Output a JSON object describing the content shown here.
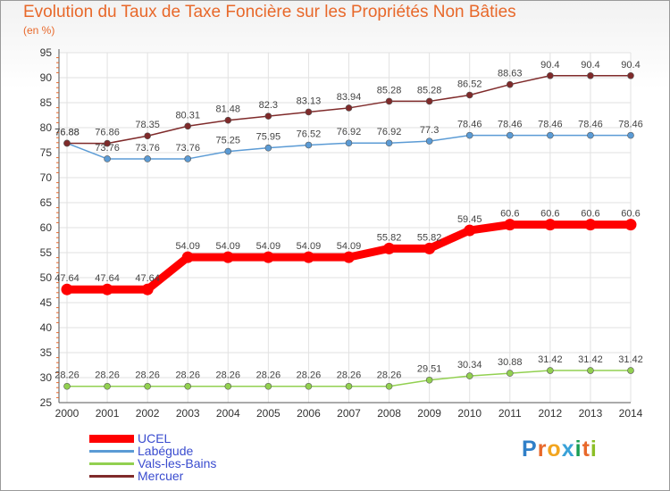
{
  "header": {
    "title": "Evolution du Taux de Taxe Foncière sur les Propriétés Non Bâties",
    "unit": "(en %)"
  },
  "brand": {
    "letters": [
      "P",
      "r",
      "o",
      "x",
      "i",
      "t",
      "i"
    ],
    "colors": [
      "#2f7fc8",
      "#e8682a",
      "#f2a51f",
      "#3aa2d8",
      "#1a9e54",
      "#e8682a",
      "#8cbf26"
    ]
  },
  "chart_data": {
    "type": "line",
    "title": "Evolution du Taux de Taxe Foncière sur les Propriétés Non Bâties",
    "ylabel": "(en %)",
    "xlabel": "",
    "ylim": [
      25,
      95
    ],
    "yticks": [
      "25",
      "30",
      "35",
      "40",
      "45",
      "50",
      "55",
      "60",
      "65",
      "70",
      "75",
      "80",
      "85",
      "90",
      "95"
    ],
    "grid": true,
    "x": [
      "2000",
      "2001",
      "2002",
      "2003",
      "2004",
      "2005",
      "2006",
      "2007",
      "2008",
      "2009",
      "2010",
      "2011",
      "2012",
      "2013",
      "2014"
    ],
    "series": [
      {
        "name": "UCEL",
        "color": "#ff0000",
        "emphasis": true,
        "values": [
          47.64,
          47.64,
          47.64,
          54.09,
          54.09,
          54.09,
          54.09,
          54.09,
          55.82,
          55.82,
          59.45,
          60.6,
          60.6,
          60.6,
          60.6
        ],
        "labels": [
          "47.64",
          "47.64",
          "47.64",
          "54.09",
          "54.09",
          "54.09",
          "54.09",
          "54.09",
          "55.82",
          "55.82",
          "59.45",
          "60.6",
          "60.6",
          "60.6",
          "60.6"
        ]
      },
      {
        "name": "Labégude",
        "color": "#5b9bd5",
        "emphasis": false,
        "values": [
          76.88,
          73.76,
          73.76,
          73.76,
          75.25,
          75.95,
          76.52,
          76.92,
          76.92,
          77.3,
          78.46,
          78.46,
          78.46,
          78.46,
          78.46
        ],
        "labels": [
          "76.88",
          "73.76",
          "73.76",
          "73.76",
          "75.25",
          "75.95",
          "76.52",
          "76.92",
          "76.92",
          "77.3",
          "78.46",
          "78.46",
          "78.46",
          "78.46",
          "78.46"
        ]
      },
      {
        "name": "Vals-les-Bains",
        "color": "#92d050",
        "emphasis": false,
        "values": [
          28.26,
          28.26,
          28.26,
          28.26,
          28.26,
          28.26,
          28.26,
          28.26,
          28.26,
          29.51,
          30.34,
          30.88,
          31.42,
          31.42,
          31.42
        ],
        "labels": [
          "28.26",
          "28.26",
          "28.26",
          "28.26",
          "28.26",
          "28.26",
          "28.26",
          "28.26",
          "28.26",
          "29.51",
          "30.34",
          "30.88",
          "31.42",
          "31.42",
          "31.42"
        ]
      },
      {
        "name": "Mercuer",
        "color": "#7f2a2a",
        "emphasis": false,
        "values": [
          76.88,
          76.86,
          78.35,
          80.31,
          81.48,
          82.3,
          83.13,
          83.94,
          85.28,
          85.28,
          86.52,
          88.63,
          90.4,
          90.4,
          90.4
        ],
        "labels": [
          "76.88",
          "76.86",
          "78.35",
          "80.31",
          "81.48",
          "82.3",
          "83.13",
          "83.94",
          "85.28",
          "85.28",
          "86.52",
          "88.63",
          "90.4",
          "90.4",
          "90.4"
        ]
      }
    ]
  }
}
